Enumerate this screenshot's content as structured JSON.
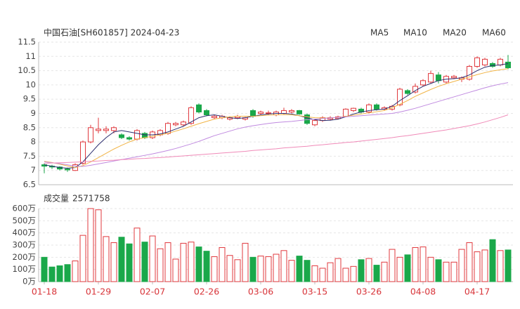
{
  "chart_data": {
    "type": "candlestick",
    "title": "中国石油[SH601857] 2024-04-23",
    "categories": [
      "01-18",
      null,
      null,
      null,
      null,
      null,
      null,
      "01-29",
      null,
      null,
      null,
      null,
      null,
      null,
      "02-07",
      null,
      null,
      null,
      null,
      null,
      null,
      "02-26",
      null,
      null,
      null,
      null,
      null,
      null,
      "03-06",
      null,
      null,
      null,
      null,
      null,
      null,
      "03-15",
      null,
      null,
      null,
      null,
      null,
      null,
      "03-26",
      null,
      null,
      null,
      null,
      null,
      null,
      "04-08",
      null,
      null,
      null,
      null,
      null,
      null,
      "04-17",
      null,
      null,
      null,
      null
    ],
    "open": [
      7.2,
      7.15,
      7.12,
      7.05,
      7.0,
      7.25,
      8.0,
      8.4,
      8.4,
      8.4,
      8.25,
      8.15,
      8.1,
      8.3,
      8.15,
      8.25,
      8.3,
      8.6,
      8.6,
      8.65,
      9.3,
      9.1,
      8.85,
      8.85,
      8.8,
      8.85,
      8.8,
      9.1,
      9.0,
      9.0,
      8.95,
      9.0,
      9.05,
      9.1,
      8.95,
      8.6,
      8.75,
      8.8,
      8.82,
      8.9,
      9.1,
      9.15,
      9.05,
      9.3,
      9.15,
      9.15,
      9.3,
      9.8,
      9.75,
      10.0,
      10.1,
      10.35,
      10.1,
      10.25,
      10.2,
      10.2,
      10.65,
      10.7,
      10.75,
      10.7,
      10.8
    ],
    "high": [
      7.25,
      7.2,
      7.15,
      7.1,
      7.25,
      8.05,
      8.6,
      8.85,
      8.55,
      8.55,
      8.3,
      8.2,
      8.45,
      8.35,
      8.4,
      8.45,
      8.7,
      8.7,
      8.75,
      9.25,
      9.35,
      9.15,
      8.95,
      8.95,
      8.9,
      8.95,
      8.88,
      9.15,
      9.1,
      9.1,
      9.1,
      9.2,
      9.15,
      9.12,
      9.0,
      8.8,
      8.9,
      8.9,
      8.92,
      9.18,
      9.2,
      9.2,
      9.35,
      9.35,
      9.25,
      9.3,
      9.9,
      9.85,
      10.05,
      10.2,
      10.5,
      10.45,
      10.35,
      10.35,
      10.3,
      10.7,
      11.0,
      10.95,
      10.8,
      10.95,
      11.05
    ],
    "low": [
      6.9,
      7.05,
      7.0,
      6.95,
      6.98,
      7.2,
      7.95,
      8.3,
      8.3,
      8.3,
      8.1,
      8.05,
      8.05,
      8.1,
      8.1,
      8.2,
      8.25,
      8.55,
      8.55,
      8.6,
      9.0,
      8.9,
      8.8,
      8.8,
      8.75,
      8.8,
      8.75,
      8.85,
      8.95,
      8.95,
      8.9,
      8.95,
      9.0,
      8.95,
      8.6,
      8.55,
      8.7,
      8.75,
      8.78,
      8.88,
      9.05,
      9.0,
      9.0,
      9.1,
      9.1,
      9.1,
      9.25,
      9.65,
      9.7,
      9.95,
      10.05,
      10.05,
      10.05,
      10.2,
      10.1,
      10.15,
      10.6,
      10.65,
      10.6,
      10.65,
      10.55
    ],
    "close": [
      7.15,
      7.12,
      7.05,
      7.02,
      7.2,
      8.0,
      8.5,
      8.45,
      8.45,
      8.5,
      8.15,
      8.1,
      8.4,
      8.15,
      8.35,
      8.4,
      8.65,
      8.65,
      8.7,
      9.2,
      9.05,
      8.95,
      8.9,
      8.9,
      8.85,
      8.9,
      8.85,
      8.9,
      9.05,
      9.02,
      9.05,
      9.1,
      9.1,
      8.98,
      8.65,
      8.75,
      8.85,
      8.85,
      8.88,
      9.15,
      9.18,
      9.05,
      9.3,
      9.15,
      9.2,
      9.25,
      9.85,
      9.7,
      9.95,
      10.15,
      10.4,
      10.15,
      10.3,
      10.3,
      10.25,
      10.65,
      10.95,
      10.9,
      10.65,
      10.9,
      10.6
    ],
    "up_color": "#e0393e",
    "down_color": "#1aa84a",
    "ylim": [
      6.5,
      11.5
    ],
    "yticks": [
      6.5,
      7,
      7.5,
      8,
      8.5,
      9,
      9.5,
      10,
      10.5,
      11,
      11.5
    ],
    "grid": true,
    "series": [
      {
        "name": "MA5",
        "color": "#2b2d6e",
        "values": [
          7.2,
          7.15,
          7.1,
          7.08,
          7.1,
          7.3,
          7.6,
          7.9,
          8.15,
          8.35,
          8.4,
          8.35,
          8.3,
          8.25,
          8.25,
          8.28,
          8.35,
          8.45,
          8.55,
          8.7,
          8.85,
          8.92,
          8.95,
          8.9,
          8.85,
          8.82,
          8.85,
          8.9,
          8.95,
          8.98,
          9.0,
          9.0,
          8.98,
          8.92,
          8.85,
          8.78,
          8.75,
          8.76,
          8.8,
          8.88,
          8.98,
          9.05,
          9.1,
          9.13,
          9.15,
          9.25,
          9.45,
          9.62,
          9.8,
          9.95,
          10.05,
          10.15,
          10.2,
          10.22,
          10.25,
          10.35,
          10.5,
          10.62,
          10.68,
          10.7,
          10.75
        ]
      },
      {
        "name": "MA10",
        "color": "#f1b446",
        "values": [
          7.32,
          7.28,
          7.22,
          7.16,
          7.1,
          7.17,
          7.3,
          7.45,
          7.6,
          7.75,
          7.88,
          8.0,
          8.1,
          8.15,
          8.2,
          8.25,
          8.3,
          8.38,
          8.46,
          8.55,
          8.64,
          8.72,
          8.8,
          8.85,
          8.88,
          8.9,
          8.9,
          8.9,
          8.92,
          8.94,
          8.95,
          8.96,
          8.95,
          8.92,
          8.88,
          8.85,
          8.84,
          8.84,
          8.86,
          8.9,
          8.94,
          8.98,
          9.02,
          9.06,
          9.1,
          9.2,
          9.32,
          9.45,
          9.6,
          9.72,
          9.84,
          9.95,
          10.04,
          10.12,
          10.2,
          10.28,
          10.36,
          10.43,
          10.49,
          10.53,
          10.57
        ]
      },
      {
        "name": "MA20",
        "color": "#c08ae0",
        "values": [
          7.3,
          7.27,
          7.24,
          7.2,
          7.15,
          7.14,
          7.18,
          7.23,
          7.28,
          7.33,
          7.38,
          7.43,
          7.48,
          7.53,
          7.58,
          7.64,
          7.7,
          7.77,
          7.85,
          7.93,
          8.02,
          8.12,
          8.22,
          8.3,
          8.38,
          8.46,
          8.52,
          8.57,
          8.61,
          8.65,
          8.68,
          8.7,
          8.72,
          8.75,
          8.78,
          8.8,
          8.82,
          8.84,
          8.86,
          8.88,
          8.9,
          8.92,
          8.94,
          8.96,
          8.98,
          9.0,
          9.05,
          9.11,
          9.18,
          9.26,
          9.34,
          9.42,
          9.5,
          9.58,
          9.66,
          9.74,
          9.82,
          9.9,
          9.97,
          10.03,
          10.08
        ]
      },
      {
        "name": "MA60",
        "color": "#f08ab8",
        "values": [
          7.25,
          7.26,
          7.27,
          7.28,
          7.29,
          7.3,
          7.32,
          7.33,
          7.35,
          7.36,
          7.38,
          7.39,
          7.41,
          7.42,
          7.44,
          7.45,
          7.47,
          7.49,
          7.51,
          7.53,
          7.55,
          7.57,
          7.59,
          7.61,
          7.63,
          7.65,
          7.67,
          7.7,
          7.72,
          7.74,
          7.76,
          7.79,
          7.81,
          7.83,
          7.85,
          7.88,
          7.9,
          7.93,
          7.95,
          7.98,
          8.0,
          8.03,
          8.06,
          8.09,
          8.12,
          8.15,
          8.19,
          8.22,
          8.26,
          8.3,
          8.34,
          8.38,
          8.42,
          8.47,
          8.52,
          8.57,
          8.63,
          8.7,
          8.78,
          8.86,
          8.95
        ]
      }
    ],
    "volume": {
      "label": "成交量",
      "latest": 2571758,
      "values": [
        200,
        120,
        130,
        140,
        170,
        380,
        600,
        590,
        370,
        320,
        365,
        310,
        440,
        325,
        375,
        270,
        320,
        185,
        315,
        325,
        285,
        250,
        205,
        280,
        215,
        180,
        315,
        200,
        210,
        205,
        225,
        255,
        175,
        210,
        175,
        130,
        110,
        155,
        190,
        110,
        125,
        180,
        190,
        135,
        160,
        265,
        200,
        220,
        280,
        285,
        200,
        180,
        160,
        160,
        265,
        320,
        245,
        260,
        345,
        255,
        260
      ],
      "ylim": [
        0,
        600
      ],
      "yticks": [
        {
          "value": 0,
          "label": "0万"
        },
        {
          "value": 100,
          "label": "100万"
        },
        {
          "value": 200,
          "label": "200万"
        },
        {
          "value": 300,
          "label": "300万"
        },
        {
          "value": 400,
          "label": "400万"
        },
        {
          "value": 500,
          "label": "500万"
        },
        {
          "value": 600,
          "label": "600万"
        }
      ]
    }
  }
}
